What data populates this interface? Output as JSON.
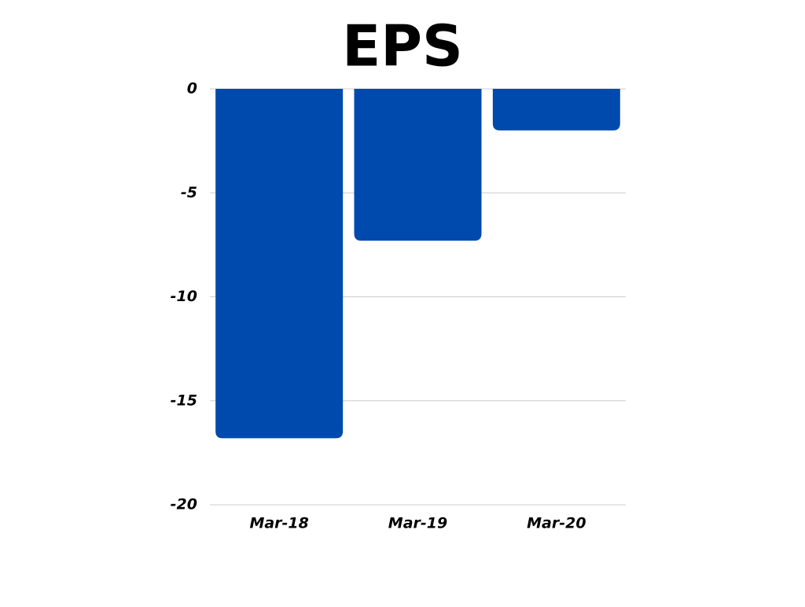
{
  "chart_data": {
    "type": "bar",
    "title": "EPS",
    "categories": [
      "Mar-18",
      "Mar-19",
      "Mar-20"
    ],
    "values": [
      -16.8,
      -7.3,
      -2.0
    ],
    "color": "#004aad",
    "ylim": [
      -20,
      0
    ],
    "yticks": [
      0,
      -5,
      -10,
      -15,
      -20
    ],
    "grid": true
  }
}
